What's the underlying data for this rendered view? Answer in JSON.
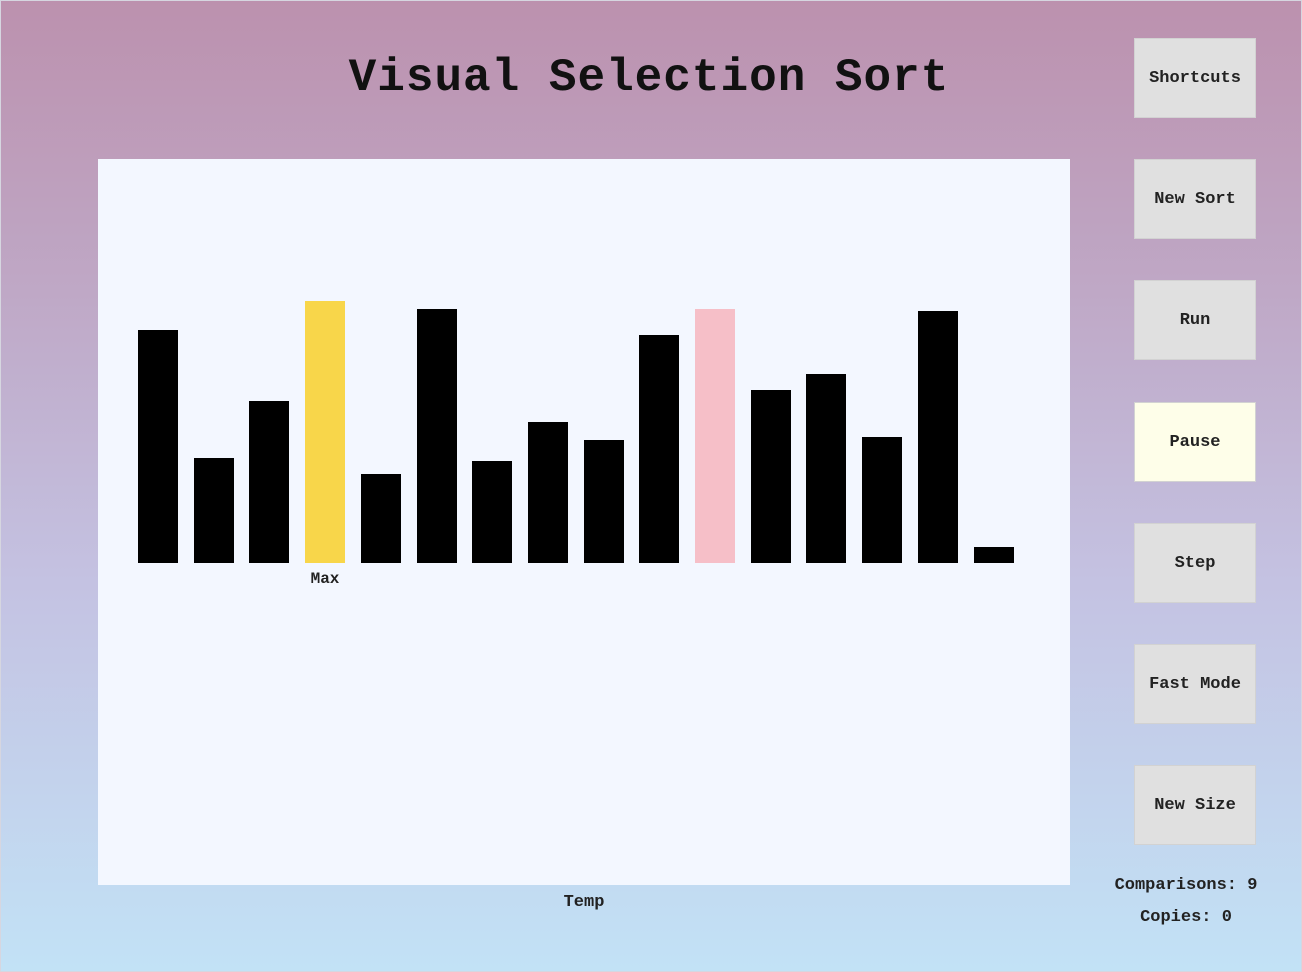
{
  "title": "Visual Selection Sort",
  "buttons": [
    {
      "label": "Shortcuts",
      "name": "shortcuts-button",
      "active": false
    },
    {
      "label": "New Sort",
      "name": "new-sort-button",
      "active": false
    },
    {
      "label": "Run",
      "name": "run-button",
      "active": false
    },
    {
      "label": "Pause",
      "name": "pause-button",
      "active": true
    },
    {
      "label": "Step",
      "name": "step-button",
      "active": false
    },
    {
      "label": "Fast Mode",
      "name": "fast-mode-button",
      "active": false
    },
    {
      "label": "New Size",
      "name": "new-size-button",
      "active": false
    }
  ],
  "stats": {
    "comparisons_label": "Comparisons:",
    "comparisons_value": "9",
    "copies_label": "Copies:",
    "copies_value": "0"
  },
  "labels": {
    "max": "Max",
    "temp": "Temp"
  },
  "colors": {
    "bar_default": "#000000",
    "bar_max": "#f8d64a",
    "bar_current": "#f6bfc8"
  },
  "chart_data": {
    "type": "bar",
    "values": [
      89,
      40,
      62,
      100,
      34,
      97,
      39,
      54,
      47,
      87,
      97,
      66,
      72,
      48,
      96,
      6
    ],
    "max_index": 3,
    "current_index": 10,
    "ylim": [
      0,
      100
    ]
  }
}
